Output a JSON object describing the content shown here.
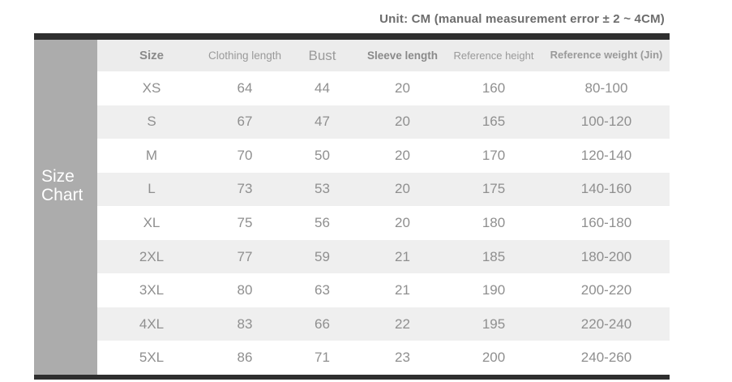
{
  "unit_note": "Unit: CM (manual measurement error ± 2 ~ 4CM)",
  "sidebar": {
    "line1": "Size",
    "line2": "Chart"
  },
  "chart_data": {
    "type": "table",
    "title": "Size Chart",
    "unit_note": "Unit: CM (manual measurement error ± 2 ~ 4CM)",
    "columns": [
      "Size",
      "Clothing length",
      "Bust",
      "Sleeve length",
      "Reference height",
      "Reference weight (Jin)"
    ],
    "rows": [
      [
        "XS",
        "64",
        "44",
        "20",
        "160",
        "80-100"
      ],
      [
        "S",
        "67",
        "47",
        "20",
        "165",
        "100-120"
      ],
      [
        "M",
        "70",
        "50",
        "20",
        "170",
        "120-140"
      ],
      [
        "L",
        "73",
        "53",
        "20",
        "175",
        "140-160"
      ],
      [
        "XL",
        "75",
        "56",
        "20",
        "180",
        "160-180"
      ],
      [
        "2XL",
        "77",
        "59",
        "21",
        "185",
        "180-200"
      ],
      [
        "3XL",
        "80",
        "63",
        "21",
        "190",
        "200-220"
      ],
      [
        "4XL",
        "83",
        "66",
        "22",
        "195",
        "220-240"
      ],
      [
        "5XL",
        "86",
        "71",
        "23",
        "200",
        "240-260"
      ]
    ]
  },
  "colors": {
    "bar": "#2f2f2f",
    "sidebar_bg": "#acacac",
    "header_bg": "#ececec",
    "stripe_bg": "#efefef",
    "row_bg": "#ffffff",
    "data_text": "#8f8f8f",
    "header_text": "#8a8a8a",
    "header_text_light": "#9a9a9a",
    "note_text": "#6d6d6d",
    "label_text": "#ffffff"
  }
}
